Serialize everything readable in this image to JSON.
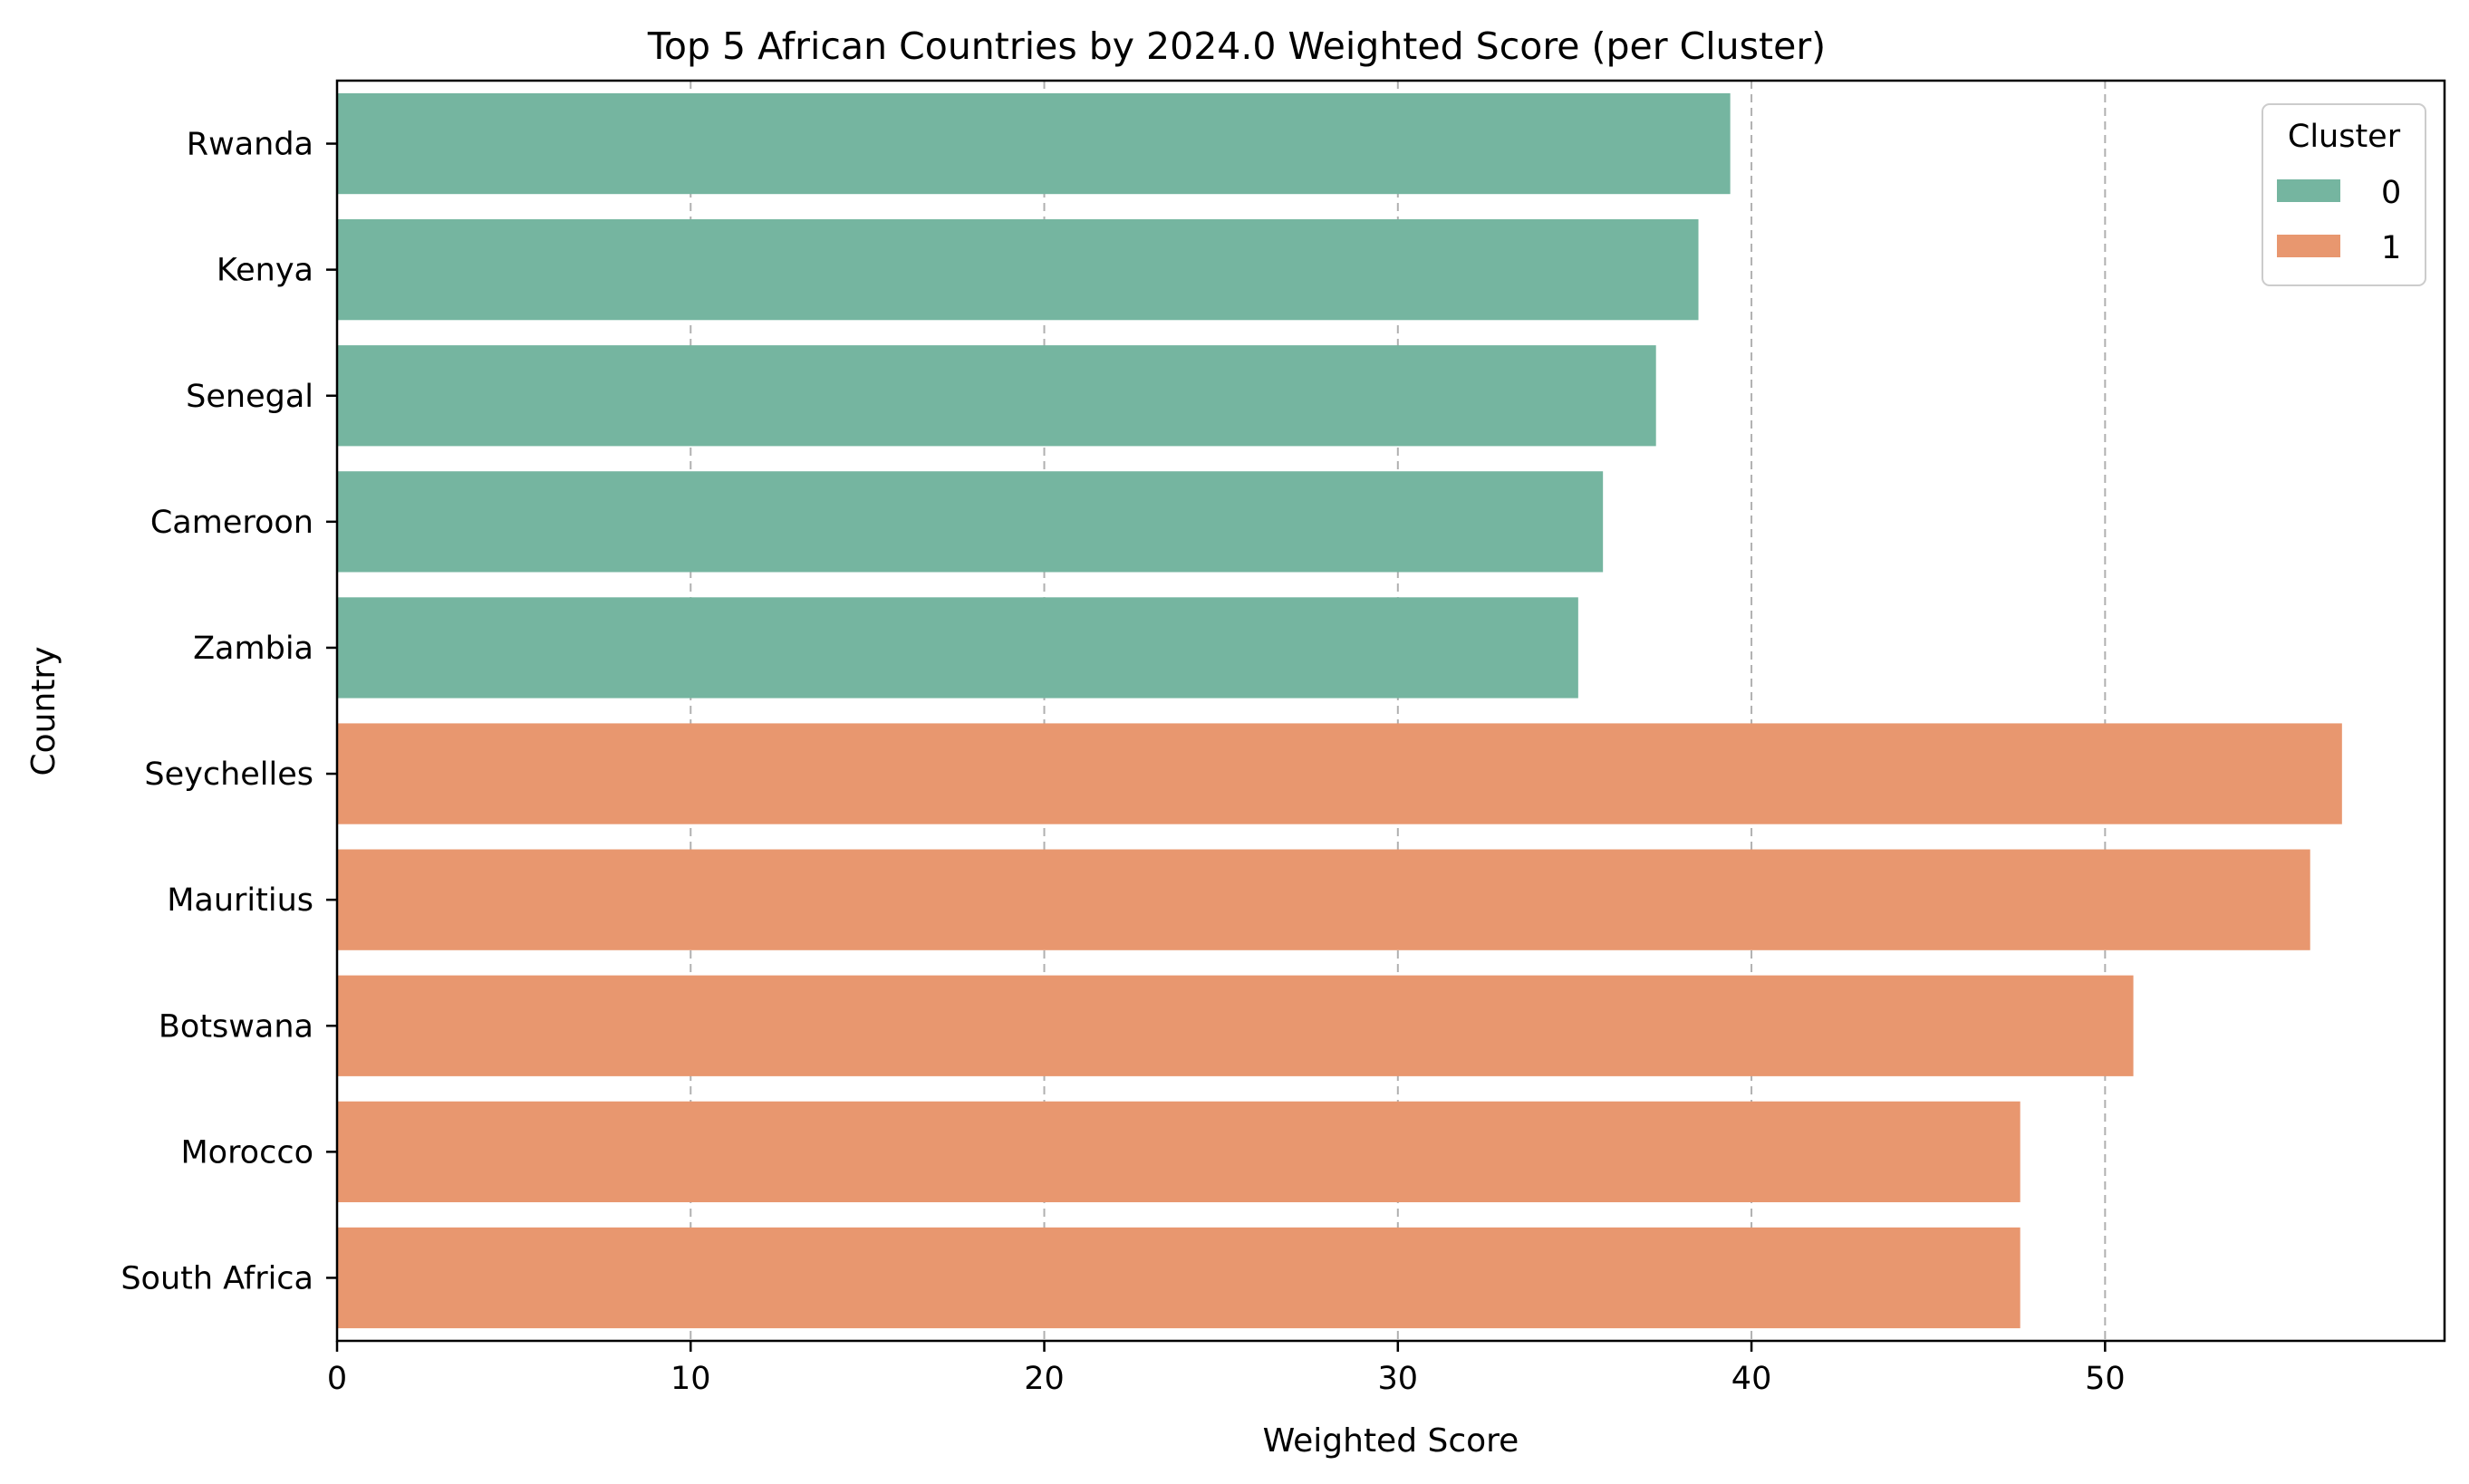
{
  "chart_data": {
    "type": "bar",
    "orientation": "horizontal",
    "title": "Top 5 African Countries by 2024.0 Weighted Score (per Cluster)",
    "xlabel": "Weighted Score",
    "ylabel": "Country",
    "xlim": [
      0,
      59.6
    ],
    "xticks": [
      0,
      10,
      20,
      30,
      40,
      50
    ],
    "grid": "x, dashed",
    "legend": {
      "title": "Cluster",
      "placement": "top-right",
      "entries": [
        {
          "label": "0",
          "color": "#75b5a0"
        },
        {
          "label": "1",
          "color": "#e8976f"
        }
      ]
    },
    "categories": [
      "Rwanda",
      "Kenya",
      "Senegal",
      "Cameroon",
      "Zambia",
      "Seychelles",
      "Mauritius",
      "Botswana",
      "Morocco",
      "South Africa"
    ],
    "values": [
      39.4,
      38.5,
      37.3,
      35.8,
      35.1,
      56.7,
      55.8,
      50.8,
      47.6,
      47.6
    ],
    "cluster": [
      "0",
      "0",
      "0",
      "0",
      "0",
      "1",
      "1",
      "1",
      "1",
      "1"
    ]
  }
}
